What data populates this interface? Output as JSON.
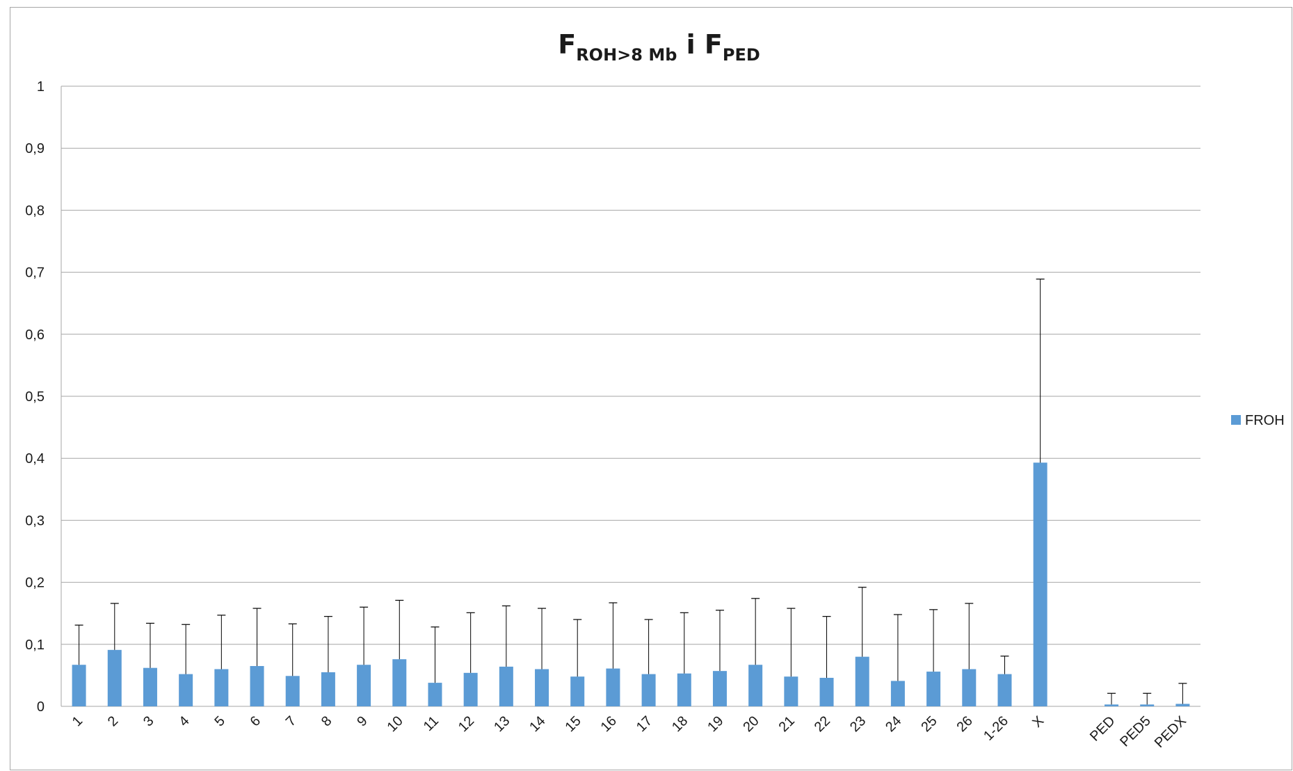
{
  "title": {
    "main1": "F",
    "sub1": "ROH>8 Mb",
    "mid": " i F",
    "sub2": "PED"
  },
  "colors": {
    "bar": "#5b9bd5",
    "grid": "#a6a6a6",
    "error": "#000000",
    "text": "#1a1a1a"
  },
  "chart_data": {
    "type": "bar",
    "categories": [
      "1",
      "2",
      "3",
      "4",
      "5",
      "6",
      "7",
      "8",
      "9",
      "10",
      "11",
      "12",
      "13",
      "14",
      "15",
      "16",
      "17",
      "18",
      "19",
      "20",
      "21",
      "22",
      "23",
      "24",
      "25",
      "26",
      "1-26",
      "X",
      "",
      "PED",
      "PED5",
      "PEDX"
    ],
    "series": [
      {
        "name": "FROH",
        "values": [
          0.067,
          0.091,
          0.062,
          0.052,
          0.06,
          0.065,
          0.049,
          0.055,
          0.067,
          0.076,
          0.038,
          0.054,
          0.064,
          0.06,
          0.048,
          0.061,
          0.052,
          0.053,
          0.057,
          0.067,
          0.048,
          0.046,
          0.08,
          0.041,
          0.056,
          0.06,
          0.052,
          0.393,
          null,
          0.003,
          0.003,
          0.004
        ],
        "error_plus": [
          0.064,
          0.075,
          0.072,
          0.08,
          0.087,
          0.093,
          0.084,
          0.09,
          0.093,
          0.095,
          0.09,
          0.097,
          0.098,
          0.098,
          0.092,
          0.106,
          0.088,
          0.098,
          0.098,
          0.107,
          0.11,
          0.099,
          0.112,
          0.107,
          0.1,
          0.106,
          0.029,
          0.296,
          null,
          0.018,
          0.018,
          0.033
        ]
      }
    ],
    "ylim": [
      0,
      1
    ],
    "yticks": [
      "0",
      "0,1",
      "0,2",
      "0,3",
      "0,4",
      "0,5",
      "0,6",
      "0,7",
      "0,8",
      "0,9",
      "1"
    ],
    "grid": true,
    "legend_position": "right",
    "xlabel": "",
    "ylabel": ""
  }
}
